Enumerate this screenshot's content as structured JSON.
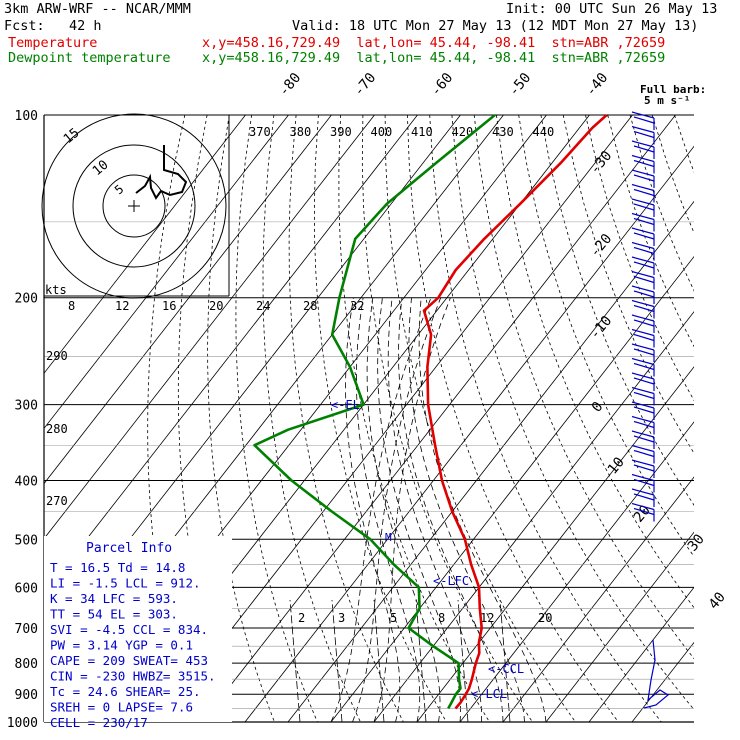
{
  "header": {
    "model": "3km ARW-WRF -- NCAR/MMM",
    "init": "Init: 00 UTC Sun 26 May 13",
    "fcst": "Fcst:   42 h",
    "valid": "Valid: 18 UTC Mon 27 May 13 (12 MDT Mon 27 May 13)",
    "temp_label": "Temperature",
    "dew_label": "Dewpoint temperature",
    "temp_loc": "x,y=458.16,729.49  lat,lon= 45.44, -98.41  stn=ABR ,72659",
    "dew_loc": "x,y=458.16,729.49  lat,lon= 45.44, -98.41  stn=ABR ,72659"
  },
  "colors": {
    "temperature": "#e00000",
    "dewpoint": "#008000",
    "barb": "#0000cc",
    "text": "#000000"
  },
  "barb_label": [
    "Full barb:",
    "5 m s⁻¹"
  ],
  "hodograph": {
    "units_label": "kts",
    "ring_labels": [
      "5",
      "10",
      "15"
    ]
  },
  "parcel_info": {
    "title": "Parcel Info",
    "rows": [
      "T   =   16.5  Td  =  14.8",
      "LI  =   -1.5  LCL =  912.",
      "K   =     34  LFC =  593.",
      "TT  =     54  EL  =  303.",
      "SVI =   -4.5  CCL =  834.",
      "PW  =   3.14  YGP =   0.1",
      "CAPE =   209  SWEAT=  453",
      "CIN  =  -230  HWBZ= 3515.",
      "Tc  =   24.6  SHEAR=  25.",
      "SREH =     0  LAPSE=  7.6",
      "CELL = 230/17"
    ]
  },
  "level_labels": {
    "el": "<-EL",
    "lfc": "<-LFC",
    "ccl": "<-CCL",
    "lcl": "<-LCL",
    "marker": "M"
  },
  "chart_data": {
    "type": "skew-t",
    "pressure_levels": [
      100,
      200,
      300,
      400,
      500,
      600,
      700,
      800,
      900,
      1000
    ],
    "isotherm_labels": [
      "-80",
      "-70",
      "-60",
      "-50",
      "-40",
      "-30",
      "-20",
      "-10",
      "0",
      "10",
      "20",
      "30",
      "40"
    ],
    "theta_labels": [
      "370",
      "380",
      "390",
      "400",
      "410",
      "420",
      "430",
      "440"
    ],
    "theta_lower_labels": [
      "290",
      "280",
      "270"
    ],
    "mixing_ratio_labels_upper": [
      "8",
      "12",
      "16",
      "20",
      "24",
      "28",
      "32"
    ],
    "mixing_ratio_labels_lower": [
      "2",
      "3",
      "5",
      "8",
      "12",
      "20"
    ],
    "series": [
      {
        "name": "Temperature",
        "points": [
          [
            100,
            -56
          ],
          [
            105,
            -57
          ],
          [
            120,
            -58
          ],
          [
            140,
            -60
          ],
          [
            160,
            -62
          ],
          [
            180,
            -63
          ],
          [
            200,
            -62
          ],
          [
            210,
            -63
          ],
          [
            230,
            -57
          ],
          [
            260,
            -52
          ],
          [
            300,
            -45
          ],
          [
            350,
            -36
          ],
          [
            400,
            -28
          ],
          [
            450,
            -20
          ],
          [
            500,
            -12
          ],
          [
            550,
            -6
          ],
          [
            600,
            0
          ],
          [
            650,
            4
          ],
          [
            700,
            8
          ],
          [
            740,
            10
          ],
          [
            770,
            12
          ],
          [
            800,
            13
          ],
          [
            850,
            15
          ],
          [
            880,
            16
          ],
          [
            900,
            16.3
          ],
          [
            930,
            16.6
          ],
          [
            950,
            16.5
          ]
        ]
      },
      {
        "name": "Dewpoint temperature",
        "points": [
          [
            100,
            -82
          ],
          [
            120,
            -87
          ],
          [
            140,
            -91
          ],
          [
            160,
            -92
          ],
          [
            200,
            -85
          ],
          [
            230,
            -80
          ],
          [
            260,
            -70
          ],
          [
            300,
            -60
          ],
          [
            330,
            -73
          ],
          [
            350,
            -78
          ],
          [
            400,
            -63
          ],
          [
            450,
            -48
          ],
          [
            500,
            -34
          ],
          [
            550,
            -24
          ],
          [
            600,
            -14
          ],
          [
            650,
            -10
          ],
          [
            700,
            -9
          ],
          [
            750,
            0
          ],
          [
            800,
            9
          ],
          [
            850,
            12
          ],
          [
            880,
            14
          ],
          [
            900,
            14
          ],
          [
            930,
            14.5
          ],
          [
            950,
            14.8
          ]
        ]
      }
    ]
  }
}
